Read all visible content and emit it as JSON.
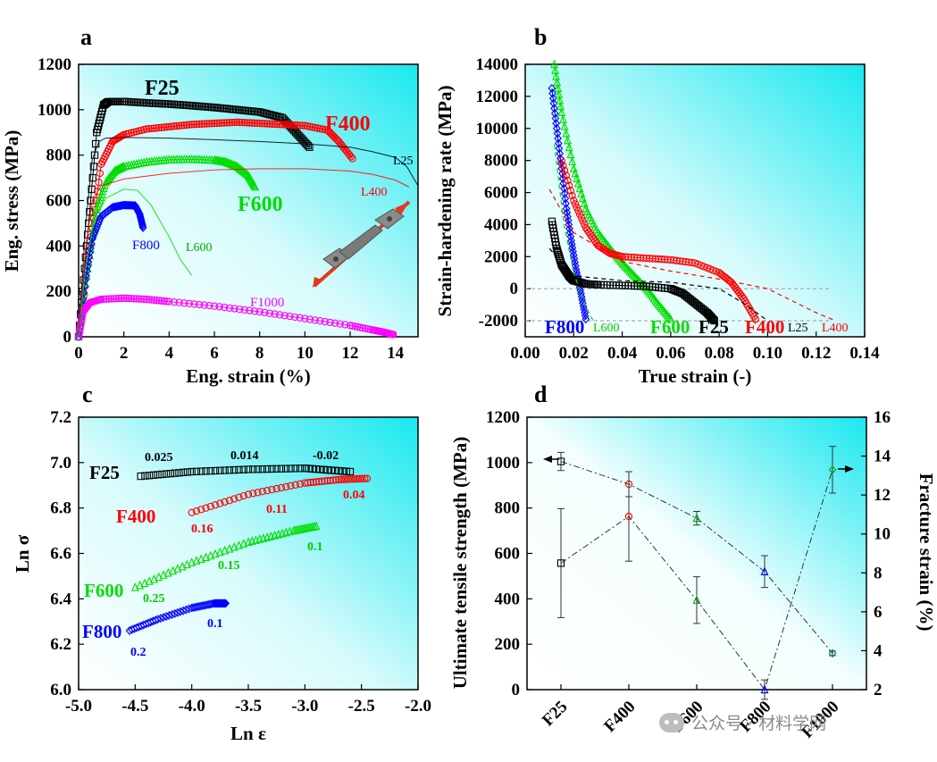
{
  "panels": {
    "a": "a",
    "b": "b",
    "c": "c",
    "d": "d"
  },
  "watermark": "公众号 · 材料学网",
  "colors": {
    "F25": "#000000",
    "F400": "#ff0000",
    "F600": "#00dd00",
    "F800": "#0000ff",
    "F1000": "#ff00ff",
    "bg_cyan": "#19e8ef"
  },
  "chart_data": [
    {
      "panel": "a",
      "type": "line",
      "xlabel": "Eng. strain (%)",
      "ylabel": "Eng. stress (MPa)",
      "xlim": [
        0,
        15
      ],
      "ylim": [
        0,
        1200
      ],
      "xticks": [
        0,
        2,
        4,
        6,
        8,
        10,
        12,
        14
      ],
      "yticks": [
        0,
        200,
        400,
        600,
        800,
        1000,
        1200
      ],
      "series": [
        {
          "name": "F25",
          "color": "#000000",
          "marker": "square",
          "x": [
            0,
            0.4,
            0.8,
            1.1,
            1.3,
            2,
            3,
            4,
            5,
            6,
            7,
            8,
            9,
            9.6,
            10.2
          ],
          "y": [
            0,
            450,
            900,
            1020,
            1035,
            1036,
            1030,
            1025,
            1018,
            1010,
            1000,
            990,
            965,
            900,
            835
          ]
        },
        {
          "name": "F400",
          "color": "#ff0000",
          "marker": "circle",
          "x": [
            0,
            0.5,
            1,
            1.5,
            2,
            3,
            4,
            5,
            6,
            7,
            8,
            9,
            10,
            11,
            11.5,
            12.1
          ],
          "y": [
            0,
            400,
            760,
            860,
            890,
            915,
            925,
            935,
            940,
            945,
            940,
            935,
            930,
            910,
            860,
            785
          ]
        },
        {
          "name": "F600",
          "color": "#00dd00",
          "marker": "triangle",
          "x": [
            0,
            0.4,
            0.8,
            1.2,
            1.6,
            2,
            3,
            4,
            5,
            6,
            6.5,
            7,
            7.5,
            7.8
          ],
          "y": [
            0,
            300,
            560,
            680,
            730,
            750,
            770,
            780,
            782,
            778,
            770,
            750,
            710,
            660
          ]
        },
        {
          "name": "F800",
          "color": "#0000ff",
          "marker": "diamond",
          "x": [
            0,
            0.3,
            0.6,
            1,
            1.5,
            2,
            2.5,
            2.7,
            2.85
          ],
          "y": [
            0,
            250,
            430,
            530,
            570,
            580,
            578,
            540,
            480
          ]
        },
        {
          "name": "F1000",
          "color": "#ff00ff",
          "marker": "circle",
          "x": [
            0,
            0.2,
            0.5,
            1,
            2,
            3,
            4,
            6,
            8,
            10,
            12,
            13,
            13.5,
            13.9
          ],
          "y": [
            0,
            110,
            150,
            165,
            170,
            165,
            155,
            135,
            110,
            80,
            50,
            30,
            20,
            10
          ]
        },
        {
          "name": "L25",
          "color": "#000000",
          "marker": "none",
          "x": [
            0,
            0.3,
            0.6,
            0.9,
            1.2,
            2,
            4,
            6,
            8,
            10,
            12,
            13,
            14,
            14.5,
            15
          ],
          "y": [
            0,
            480,
            780,
            860,
            875,
            878,
            875,
            868,
            860,
            850,
            835,
            815,
            790,
            750,
            665
          ]
        },
        {
          "name": "L400",
          "color": "#ff0000",
          "marker": "none",
          "x": [
            0,
            0.3,
            0.6,
            1,
            2,
            4,
            6,
            8,
            10,
            12,
            13,
            14,
            14.6
          ],
          "y": [
            0,
            380,
            600,
            665,
            695,
            720,
            735,
            740,
            740,
            730,
            715,
            690,
            660
          ]
        },
        {
          "name": "L600",
          "color": "#00dd00",
          "marker": "none",
          "x": [
            0,
            0.3,
            0.7,
            1.2,
            2,
            2.6,
            3.2,
            4,
            4.5,
            5
          ],
          "y": [
            0,
            300,
            520,
            610,
            650,
            645,
            580,
            440,
            340,
            270
          ]
        }
      ],
      "labels": [
        "F25",
        "F400",
        "F600",
        "F800",
        "F1000",
        "L25",
        "L400",
        "L600"
      ]
    },
    {
      "panel": "b",
      "type": "line",
      "xlabel": "True strain (-)",
      "ylabel": "Strain-hardening rate (MPa)",
      "xlim": [
        0,
        0.14
      ],
      "ylim": [
        -3000,
        14000
      ],
      "xticks": [
        0.0,
        0.02,
        0.04,
        0.06,
        0.08,
        0.1,
        0.12,
        0.14
      ],
      "yticks": [
        -2000,
        0,
        2000,
        4000,
        6000,
        8000,
        10000,
        12000,
        14000
      ],
      "series": [
        {
          "name": "F800",
          "color": "#0000ff",
          "marker": "diamond",
          "x": [
            0.011,
            0.013,
            0.015,
            0.017,
            0.019,
            0.021,
            0.023,
            0.025
          ],
          "y": [
            12500,
            10000,
            7500,
            5000,
            3000,
            1200,
            -300,
            -1900
          ]
        },
        {
          "name": "F600",
          "color": "#00dd00",
          "marker": "triangle",
          "x": [
            0.012,
            0.015,
            0.02,
            0.025,
            0.03,
            0.035,
            0.04,
            0.045,
            0.05,
            0.055,
            0.06
          ],
          "y": [
            14000,
            11000,
            7500,
            5000,
            3500,
            2500,
            1600,
            800,
            0,
            -1000,
            -1900
          ]
        },
        {
          "name": "F400",
          "color": "#ff0000",
          "marker": "circle",
          "x": [
            0.015,
            0.02,
            0.025,
            0.03,
            0.035,
            0.04,
            0.05,
            0.06,
            0.07,
            0.08,
            0.085,
            0.09,
            0.095
          ],
          "y": [
            8000,
            5500,
            3800,
            2700,
            2200,
            2000,
            1900,
            1800,
            1600,
            1000,
            400,
            -600,
            -1900
          ]
        },
        {
          "name": "F25",
          "color": "#000000",
          "marker": "square",
          "x": [
            0.011,
            0.013,
            0.015,
            0.018,
            0.02,
            0.025,
            0.03,
            0.04,
            0.05,
            0.06,
            0.065,
            0.07,
            0.075,
            0.078
          ],
          "y": [
            4200,
            2500,
            1500,
            800,
            500,
            300,
            250,
            200,
            150,
            0,
            -300,
            -900,
            -1500,
            -2000
          ]
        },
        {
          "name": "L25",
          "color": "#000000",
          "marker": "dashed",
          "x": [
            0.01,
            0.02,
            0.04,
            0.06,
            0.08,
            0.09,
            0.1
          ],
          "y": [
            2500,
            800,
            500,
            400,
            0,
            -900,
            -2000
          ]
        },
        {
          "name": "L400",
          "color": "#ff0000",
          "marker": "dashed",
          "x": [
            0.01,
            0.02,
            0.04,
            0.06,
            0.08,
            0.1,
            0.12,
            0.128
          ],
          "y": [
            6200,
            3500,
            1700,
            1100,
            600,
            0,
            -1500,
            -2000
          ]
        },
        {
          "name": "L600",
          "color": "#00dd00",
          "marker": "dashed",
          "x": [
            0.012,
            0.016,
            0.02,
            0.024,
            0.028
          ],
          "y": [
            9000,
            4000,
            1000,
            -800,
            -2000
          ]
        }
      ],
      "labels": [
        "F800",
        "L600",
        "F600",
        "F25",
        "L25",
        "F400",
        "L400"
      ]
    },
    {
      "panel": "c",
      "type": "scatter",
      "xlabel": "Ln ε",
      "ylabel": "Ln σ",
      "xlim": [
        -5.0,
        -2.0
      ],
      "ylim": [
        6.0,
        7.2
      ],
      "xticks": [
        -5.0,
        -4.5,
        -4.0,
        -3.5,
        -3.0,
        -2.5,
        -2.0
      ],
      "yticks": [
        6.0,
        6.2,
        6.4,
        6.6,
        6.8,
        7.0,
        7.2
      ],
      "series": [
        {
          "name": "F25",
          "color": "#000000",
          "marker": "square",
          "x": [
            -4.45,
            -4.0,
            -3.5,
            -3.0,
            -2.6
          ],
          "y": [
            6.94,
            6.96,
            6.97,
            6.975,
            6.96
          ],
          "slopes": [
            "0.025",
            "0.014",
            "-0.02"
          ]
        },
        {
          "name": "F400",
          "color": "#ff0000",
          "marker": "circle",
          "x": [
            -4.0,
            -3.5,
            -3.0,
            -2.7,
            -2.45
          ],
          "y": [
            6.78,
            6.86,
            6.91,
            6.925,
            6.93
          ],
          "slopes": [
            "0.16",
            "0.11",
            "0.04"
          ]
        },
        {
          "name": "F600",
          "color": "#00dd00",
          "marker": "triangle",
          "x": [
            -4.5,
            -4.0,
            -3.5,
            -3.1,
            -2.9
          ],
          "y": [
            6.45,
            6.56,
            6.65,
            6.7,
            6.72
          ],
          "slopes": [
            "0.25",
            "0.15",
            "0.1"
          ]
        },
        {
          "name": "F800",
          "color": "#0000ff",
          "marker": "diamond",
          "x": [
            -4.55,
            -4.3,
            -4.0,
            -3.8,
            -3.7
          ],
          "y": [
            6.26,
            6.31,
            6.36,
            6.38,
            6.38
          ],
          "slopes": [
            "0.2",
            "0.1"
          ]
        }
      ],
      "labels": [
        "F25",
        "F400",
        "F600",
        "F800"
      ],
      "slope_labels": [
        "0.025",
        "0.014",
        "-0.02",
        "0.16",
        "0.11",
        "0.04",
        "0.25",
        "0.15",
        "0.1",
        "0.2",
        "0.1"
      ]
    },
    {
      "panel": "d",
      "type": "line",
      "categories": [
        "F25",
        "F400",
        "F600",
        "F800",
        "F1000"
      ],
      "ylabel": "Ultimate tensile strength (MPa)",
      "y2label": "Fracture strain (%)",
      "ylim": [
        0,
        1200
      ],
      "y2lim": [
        2,
        16
      ],
      "yticks": [
        0,
        200,
        400,
        600,
        800,
        1000,
        1200
      ],
      "y2ticks": [
        2,
        4,
        6,
        8,
        10,
        12,
        14,
        16
      ],
      "series": [
        {
          "name": "Ultimate tensile strength",
          "axis": "left",
          "values": [
            1005,
            905,
            755,
            520,
            160
          ],
          "errors": [
            40,
            55,
            30,
            70,
            10
          ],
          "colors": [
            "#000000",
            "#ff0000",
            "#00aa00",
            "#0000ff",
            "#008888"
          ]
        },
        {
          "name": "Fracture strain",
          "axis": "right",
          "values": [
            8.5,
            10.9,
            6.6,
            2.0,
            13.3
          ],
          "errors": [
            2.8,
            2.3,
            1.2,
            0.5,
            1.2
          ],
          "colors": [
            "#000000",
            "#ff0000",
            "#00aa00",
            "#0000ff",
            "#00aa00"
          ]
        }
      ]
    }
  ]
}
